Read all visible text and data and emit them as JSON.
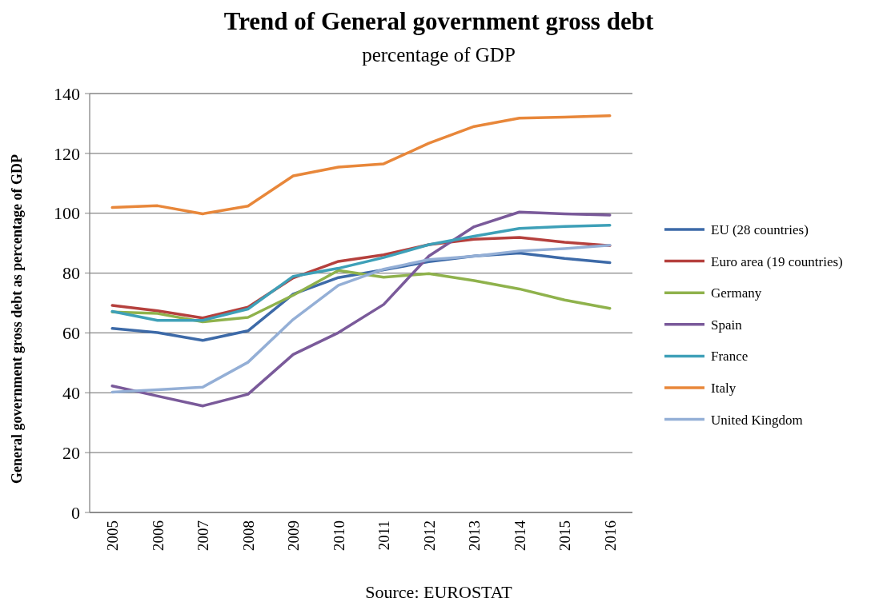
{
  "chart_data": {
    "type": "line",
    "title": "Trend of  General government gross debt",
    "subtitle": "percentage of  GDP",
    "ylabel": "General government  gross debt as percentage of GDP",
    "annotations": [
      "Source: EUROSTAT"
    ],
    "categories": [
      "2005",
      "2006",
      "2007",
      "2008",
      "2009",
      "2010",
      "2011",
      "2012",
      "2013",
      "2014",
      "2015",
      "2016"
    ],
    "ylim": [
      0,
      140
    ],
    "yticks": [
      0,
      20,
      40,
      60,
      80,
      100,
      120,
      140
    ],
    "grid": "y",
    "legend": "right",
    "marker": "none",
    "line_style": "solid",
    "series": [
      {
        "name": "EU (28 countries)",
        "color": "#3d6aa8",
        "values": [
          61.5,
          60.1,
          57.5,
          60.7,
          73,
          78.5,
          81.1,
          83.8,
          85.7,
          86.7,
          84.9,
          83.5
        ]
      },
      {
        "name": "Euro area (19 countries)",
        "color": "#b5403d",
        "values": [
          69.2,
          67.4,
          65,
          68.6,
          78.4,
          83.9,
          86.1,
          89.5,
          91.3,
          91.9,
          90.3,
          89.2
        ]
      },
      {
        "name": "Germany",
        "color": "#8fb24c",
        "values": [
          67,
          66.5,
          63.7,
          65.2,
          72.6,
          80.9,
          78.6,
          79.8,
          77.5,
          74.7,
          71,
          68.2
        ]
      },
      {
        "name": "Spain",
        "color": "#7a5a9a",
        "values": [
          42.3,
          38.9,
          35.6,
          39.5,
          52.8,
          60.1,
          69.5,
          85.7,
          95.5,
          100.4,
          99.8,
          99.4
        ]
      },
      {
        "name": "France",
        "color": "#3ea0b8",
        "values": [
          67.2,
          64.2,
          64.2,
          68,
          78.9,
          81.6,
          85.2,
          89.5,
          92.3,
          94.9,
          95.6,
          96
        ]
      },
      {
        "name": "Italy",
        "color": "#e8873a",
        "values": [
          101.9,
          102.5,
          99.8,
          102.4,
          112.5,
          115.4,
          116.5,
          123.4,
          129,
          131.8,
          132.1,
          132.6
        ]
      },
      {
        "name": "United Kingdom",
        "color": "#94afd6",
        "values": [
          40.2,
          41,
          41.9,
          50.2,
          64.5,
          75.9,
          81.3,
          84.5,
          85.6,
          87.4,
          88.2,
          89.3
        ]
      }
    ]
  }
}
